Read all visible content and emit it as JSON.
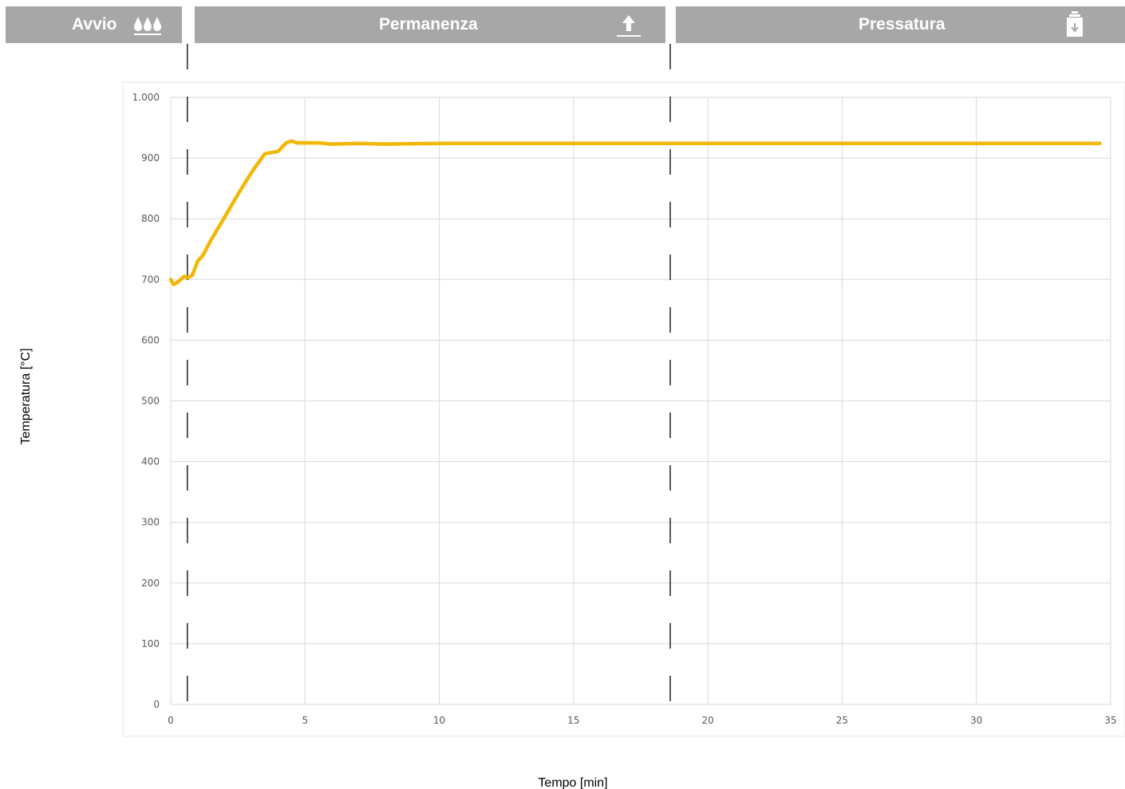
{
  "phases": [
    {
      "label": "Avvio",
      "icon": "drops-icon"
    },
    {
      "label": "Permanenza",
      "icon": "lift-up-icon"
    },
    {
      "label": "Pressatura",
      "icon": "press-weight-icon"
    }
  ],
  "colors": {
    "phase_bar": "#a7a7a7",
    "line": "#f2b705",
    "grid": "#d9d9d9"
  },
  "chart_data": {
    "type": "line",
    "xlabel": "Tempo [min]",
    "ylabel": "Temperatura [°C]",
    "xlim": [
      0,
      35
    ],
    "ylim": [
      0,
      1000
    ],
    "x_ticks": [
      0,
      5,
      10,
      15,
      20,
      25,
      30,
      35
    ],
    "y_ticks": [
      0,
      100,
      200,
      300,
      400,
      500,
      600,
      700,
      800,
      900,
      1000
    ],
    "x_tick_labels": [
      "0",
      "5",
      "10",
      "15",
      "20",
      "25",
      "30",
      "35"
    ],
    "y_tick_labels": [
      "0",
      "100",
      "200",
      "300",
      "400",
      "500",
      "600",
      "700",
      "800",
      "900",
      "1.000"
    ],
    "grid": true,
    "phase_boundaries_min": [
      0.62,
      18.6
    ],
    "series": [
      {
        "x": [
          0,
          0.1,
          0.2,
          0.35,
          0.5,
          0.65,
          0.8,
          0.9,
          1.0,
          1.2,
          1.5,
          2.0,
          2.5,
          3.0,
          3.5,
          4.0,
          4.3,
          4.5,
          4.7,
          5.0,
          5.5,
          6.0,
          7.0,
          8.0,
          10,
          15,
          20,
          25,
          30,
          34.6
        ],
        "y": [
          700,
          692,
          694,
          699,
          705,
          703,
          707,
          718,
          730,
          740,
          765,
          802,
          840,
          876,
          907,
          911,
          925,
          928,
          925,
          925,
          925,
          923,
          924,
          923,
          924,
          924,
          924,
          924,
          924,
          924
        ]
      }
    ]
  }
}
